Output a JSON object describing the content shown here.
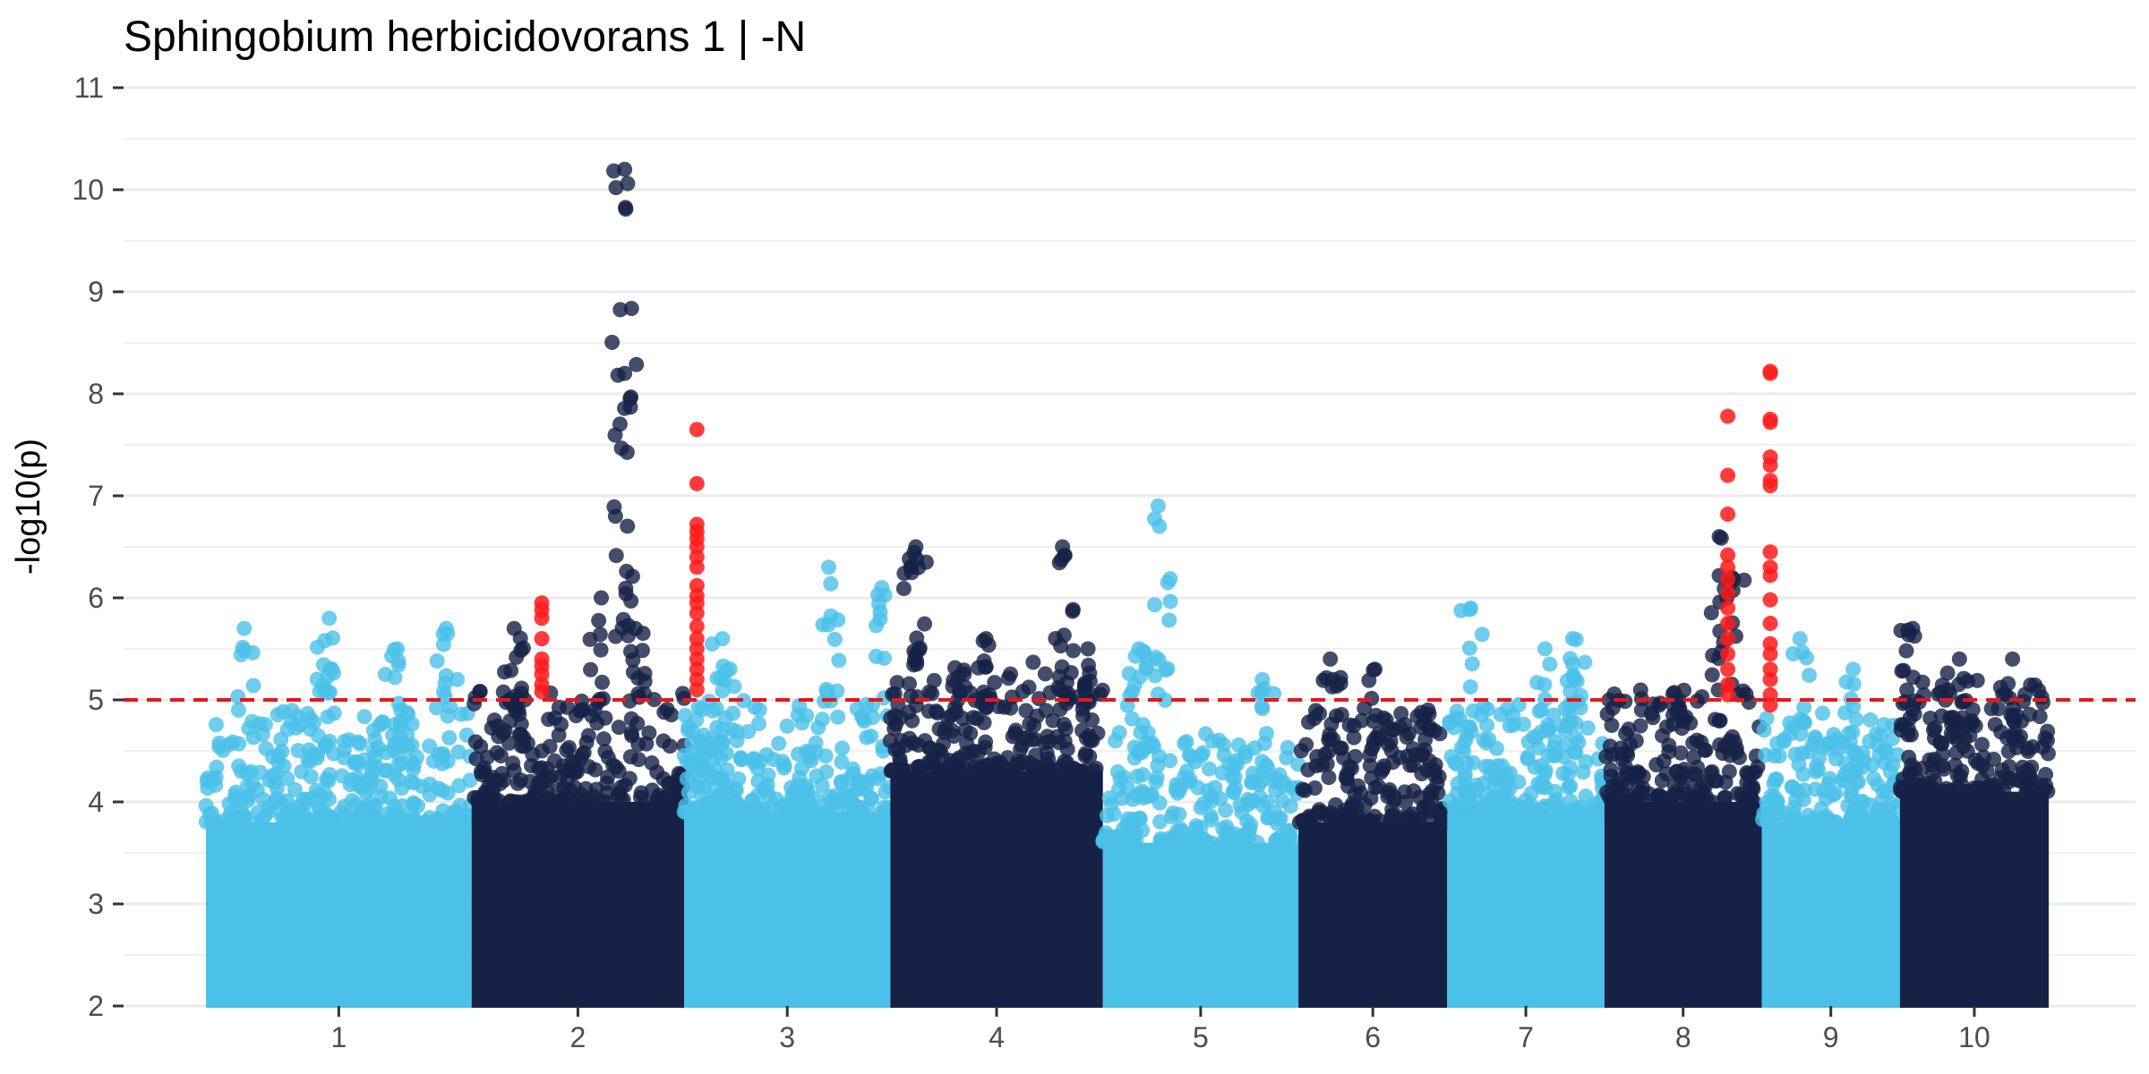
{
  "chart_data": {
    "type": "scatter",
    "title": "Sphingobium herbicidovorans 1 | -N",
    "ylabel": "-log10(p)",
    "xlabel": "",
    "ylim": [
      2,
      11
    ],
    "yticks": [
      "2",
      "3",
      "4",
      "5",
      "6",
      "7",
      "8",
      "9",
      "10",
      "11"
    ],
    "threshold": 5,
    "grid": true,
    "legend": "none",
    "colors": {
      "light": "#4BC0E8",
      "dark": "#152246",
      "significant": "#FF1A1A",
      "threshold": "#E8161B",
      "grid": "#EBEBEB"
    },
    "chromosomes": [
      {
        "label": "1",
        "start": 0.0,
        "end": 12.5,
        "color": "light",
        "base": 3.8,
        "peaks": [
          {
            "x": 1.8,
            "y": 5.7
          },
          {
            "x": 5.8,
            "y": 5.8
          },
          {
            "x": 9.0,
            "y": 5.5
          },
          {
            "x": 11.3,
            "y": 5.7
          }
        ]
      },
      {
        "label": "2",
        "start": 12.5,
        "end": 22.5,
        "color": "dark",
        "base": 4.0,
        "peaks": [
          {
            "x": 14.5,
            "y": 5.7
          },
          {
            "x": 18.6,
            "y": 6.0
          },
          {
            "x": 19.7,
            "y": 10.2
          },
          {
            "x": 19.7,
            "y": 8.2
          },
          {
            "x": 20.2,
            "y": 5.7
          }
        ]
      },
      {
        "label": "3",
        "start": 22.5,
        "end": 32.2,
        "color": "light",
        "base": 3.9,
        "peaks": [
          {
            "x": 24.3,
            "y": 5.6
          },
          {
            "x": 29.3,
            "y": 6.3
          },
          {
            "x": 31.8,
            "y": 6.1
          }
        ]
      },
      {
        "label": "4",
        "start": 32.2,
        "end": 42.2,
        "color": "dark",
        "base": 4.3,
        "peaks": [
          {
            "x": 33.4,
            "y": 6.5
          },
          {
            "x": 36.7,
            "y": 5.6
          },
          {
            "x": 40.3,
            "y": 6.5
          },
          {
            "x": 41.5,
            "y": 5.5
          }
        ]
      },
      {
        "label": "5",
        "start": 42.2,
        "end": 51.4,
        "color": "light",
        "base": 3.6,
        "peaks": [
          {
            "x": 43.9,
            "y": 5.5
          },
          {
            "x": 44.8,
            "y": 6.9
          },
          {
            "x": 49.7,
            "y": 5.2
          }
        ]
      },
      {
        "label": "6",
        "start": 51.4,
        "end": 58.4,
        "color": "dark",
        "base": 3.8,
        "peaks": [
          {
            "x": 52.9,
            "y": 5.4
          },
          {
            "x": 55.0,
            "y": 5.3
          },
          {
            "x": 57.5,
            "y": 4.9
          }
        ]
      },
      {
        "label": "7",
        "start": 58.4,
        "end": 65.8,
        "color": "light",
        "base": 3.9,
        "peaks": [
          {
            "x": 59.5,
            "y": 5.9
          },
          {
            "x": 63.0,
            "y": 5.5
          },
          {
            "x": 64.3,
            "y": 5.6
          }
        ]
      },
      {
        "label": "8",
        "start": 65.8,
        "end": 73.2,
        "color": "dark",
        "base": 4.0,
        "peaks": [
          {
            "x": 71.2,
            "y": 6.6
          },
          {
            "x": 71.8,
            "y": 6.2
          },
          {
            "x": 69.3,
            "y": 5.0
          }
        ]
      },
      {
        "label": "9",
        "start": 73.2,
        "end": 79.7,
        "color": "light",
        "base": 3.8,
        "peaks": [
          {
            "x": 75.0,
            "y": 5.6
          },
          {
            "x": 77.5,
            "y": 5.3
          }
        ]
      },
      {
        "label": "10",
        "start": 79.7,
        "end": 86.7,
        "color": "dark",
        "base": 4.1,
        "peaks": [
          {
            "x": 80.3,
            "y": 5.7
          },
          {
            "x": 82.5,
            "y": 5.4
          },
          {
            "x": 85.0,
            "y": 5.4
          }
        ]
      }
    ],
    "significant_points": [
      {
        "x": 15.8,
        "y": 5.95
      },
      {
        "x": 15.8,
        "y": 5.88
      },
      {
        "x": 15.8,
        "y": 5.8
      },
      {
        "x": 15.8,
        "y": 5.6
      },
      {
        "x": 15.8,
        "y": 5.4
      },
      {
        "x": 15.8,
        "y": 5.33
      },
      {
        "x": 15.8,
        "y": 5.25
      },
      {
        "x": 15.8,
        "y": 5.15
      },
      {
        "x": 15.8,
        "y": 5.08
      },
      {
        "x": 23.1,
        "y": 7.65
      },
      {
        "x": 23.1,
        "y": 7.12
      },
      {
        "x": 23.1,
        "y": 6.72
      },
      {
        "x": 23.1,
        "y": 6.65
      },
      {
        "x": 23.1,
        "y": 6.58
      },
      {
        "x": 23.1,
        "y": 6.5
      },
      {
        "x": 23.1,
        "y": 6.4
      },
      {
        "x": 23.1,
        "y": 6.3
      },
      {
        "x": 23.1,
        "y": 6.12
      },
      {
        "x": 23.1,
        "y": 6.02
      },
      {
        "x": 23.1,
        "y": 5.95
      },
      {
        "x": 23.1,
        "y": 5.85
      },
      {
        "x": 23.1,
        "y": 5.72
      },
      {
        "x": 23.1,
        "y": 5.6
      },
      {
        "x": 23.1,
        "y": 5.5
      },
      {
        "x": 23.1,
        "y": 5.4
      },
      {
        "x": 23.1,
        "y": 5.3
      },
      {
        "x": 23.1,
        "y": 5.2
      },
      {
        "x": 23.1,
        "y": 5.1
      },
      {
        "x": 71.6,
        "y": 7.78
      },
      {
        "x": 71.6,
        "y": 7.2
      },
      {
        "x": 71.6,
        "y": 6.82
      },
      {
        "x": 71.6,
        "y": 6.42
      },
      {
        "x": 71.6,
        "y": 6.3
      },
      {
        "x": 71.6,
        "y": 6.18
      },
      {
        "x": 71.6,
        "y": 6.05
      },
      {
        "x": 71.6,
        "y": 5.9
      },
      {
        "x": 71.6,
        "y": 5.75
      },
      {
        "x": 71.6,
        "y": 5.6
      },
      {
        "x": 71.6,
        "y": 5.45
      },
      {
        "x": 71.6,
        "y": 5.3
      },
      {
        "x": 71.6,
        "y": 5.15
      },
      {
        "x": 71.6,
        "y": 5.05
      },
      {
        "x": 73.6,
        "y": 8.22
      },
      {
        "x": 73.6,
        "y": 8.2
      },
      {
        "x": 73.6,
        "y": 7.75
      },
      {
        "x": 73.6,
        "y": 7.72
      },
      {
        "x": 73.6,
        "y": 7.38
      },
      {
        "x": 73.6,
        "y": 7.3
      },
      {
        "x": 73.6,
        "y": 7.15
      },
      {
        "x": 73.6,
        "y": 7.1
      },
      {
        "x": 73.6,
        "y": 6.45
      },
      {
        "x": 73.6,
        "y": 6.3
      },
      {
        "x": 73.6,
        "y": 6.22
      },
      {
        "x": 73.6,
        "y": 5.98
      },
      {
        "x": 73.6,
        "y": 5.75
      },
      {
        "x": 73.6,
        "y": 5.55
      },
      {
        "x": 73.6,
        "y": 5.45
      },
      {
        "x": 73.6,
        "y": 5.3
      },
      {
        "x": 73.6,
        "y": 5.2
      },
      {
        "x": 73.6,
        "y": 5.05
      },
      {
        "x": 73.6,
        "y": 4.95
      }
    ]
  }
}
